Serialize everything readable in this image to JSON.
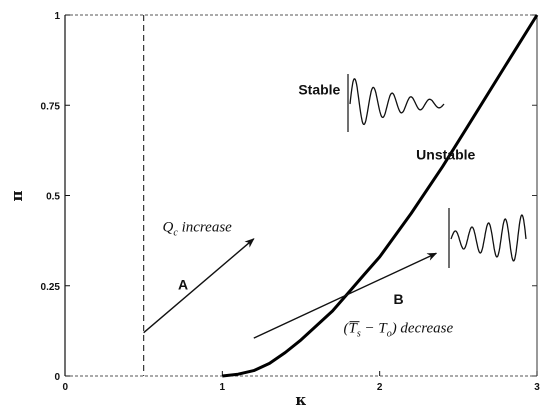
{
  "chart_data": {
    "type": "line",
    "title": "",
    "xlabel": "κ",
    "ylabel": "π",
    "xlim": [
      0,
      3
    ],
    "ylim": [
      0,
      1
    ],
    "x_ticks": [
      {
        "value": 0,
        "label": "0"
      },
      {
        "value": 1,
        "label": "1"
      },
      {
        "value": 2,
        "label": "2"
      },
      {
        "value": 3,
        "label": "3"
      }
    ],
    "y_ticks": [
      {
        "value": 0,
        "label": "0"
      },
      {
        "value": 0.25,
        "label": "0.25"
      },
      {
        "value": 0.5,
        "label": "0.5"
      },
      {
        "value": 0.75,
        "label": "0.75"
      },
      {
        "value": 1,
        "label": "1"
      }
    ],
    "grid": false,
    "stability_boundary": {
      "x": [
        1.0,
        1.1,
        1.2,
        1.3,
        1.4,
        1.5,
        1.6,
        1.7,
        1.8,
        1.9,
        2.0,
        2.2,
        2.4,
        2.6,
        2.8,
        3.0
      ],
      "y": [
        0.0,
        0.005,
        0.015,
        0.035,
        0.065,
        0.1,
        0.14,
        0.18,
        0.23,
        0.28,
        0.33,
        0.45,
        0.58,
        0.72,
        0.86,
        1.0
      ]
    },
    "dashed_line_x": 0.5,
    "regions": [
      {
        "label": "Stable",
        "x": 1.75,
        "y": 0.78
      },
      {
        "label": "Unstable",
        "x": 2.42,
        "y": 0.6
      }
    ],
    "paths": [
      {
        "label": "A",
        "from": [
          0.5,
          0.12
        ],
        "to": [
          1.2,
          0.38
        ],
        "label_at": [
          0.75,
          0.24
        ]
      },
      {
        "label": "B",
        "from": [
          1.2,
          0.105
        ],
        "to": [
          2.36,
          0.34
        ],
        "label_at": [
          2.12,
          0.2
        ]
      }
    ],
    "annotations": [
      {
        "id": "qc",
        "base": "Q",
        "sub": "c",
        "rest": "  increase",
        "x": 0.62,
        "y": 0.4
      },
      {
        "id": "ts",
        "text_open": "(",
        "t1": "T",
        "t1_sub": "s",
        "mid": " − ",
        "t2": "T",
        "t2_sub": "o",
        "text_close": ") decrease",
        "x": 1.77,
        "y": 0.12
      }
    ]
  }
}
